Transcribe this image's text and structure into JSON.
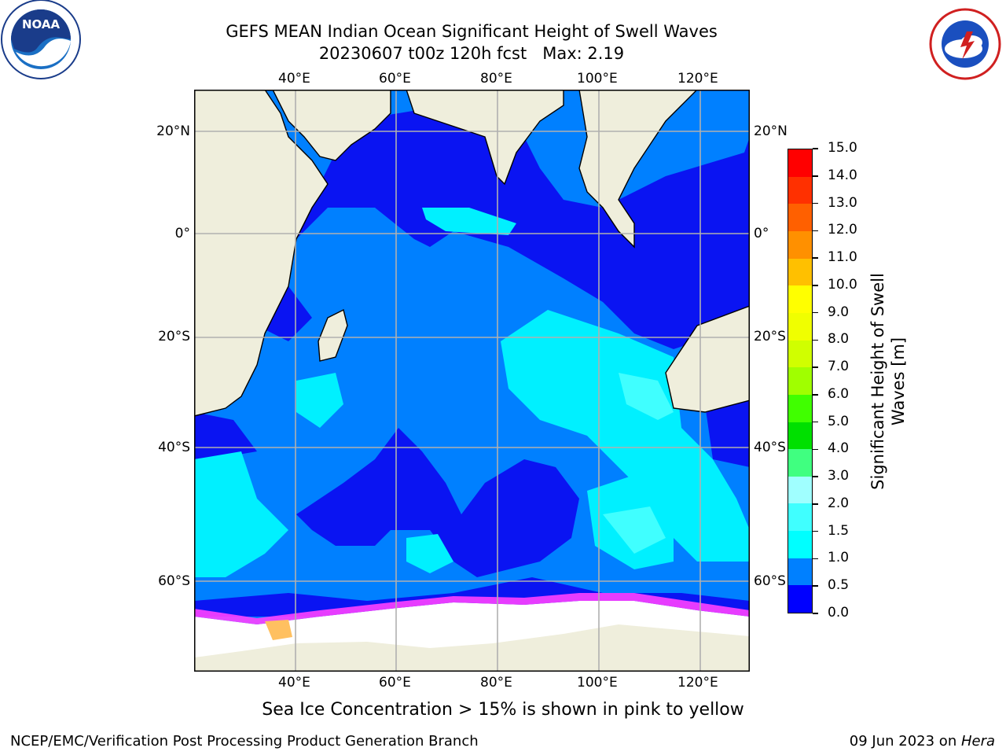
{
  "title": {
    "line1": "GEFS MEAN Indian Ocean Significant Height of Swell Waves",
    "line2": "20230607 t00z 120h fcst   Max: 2.19"
  },
  "logos": {
    "left": "NOAA",
    "left_ring": "NATIONAL OCEANIC AND ATMOSPHERIC ADMINISTRATION · U.S. DEPARTMENT OF COMMERCE",
    "right_ring": "NATIONAL WEATHER SERVICE"
  },
  "map": {
    "lon_ticks": [
      "40°E",
      "60°E",
      "80°E",
      "100°E",
      "120°E"
    ],
    "lat_ticks": [
      "20°N",
      "0°",
      "20°S",
      "40°S",
      "60°S"
    ],
    "colors": {
      "land": "#efeedc",
      "ocean_0_0.5": "#0a14f2",
      "ocean_0.5_1.0": "#0080ff",
      "ocean_1.0_1.5": "#00f0ff",
      "ocean_1.5_2.0": "#40ffff",
      "ice_low": "#ff40ff",
      "ice_high": "#ffc060",
      "ice_shelf": "#ffffff"
    }
  },
  "colorbar": {
    "label": "Significant Height of Swell Waves [m]",
    "ticks": [
      "0.0",
      "0.5",
      "1.0",
      "1.5",
      "2.0",
      "3.0",
      "4.0",
      "5.0",
      "6.0",
      "7.0",
      "8.0",
      "9.0",
      "10.0",
      "11.0",
      "12.0",
      "13.0",
      "14.0",
      "15.0"
    ],
    "colors": [
      "#0000ff",
      "#0080ff",
      "#00ffff",
      "#40ffff",
      "#a0ffff",
      "#40ff80",
      "#00e000",
      "#40ff00",
      "#a0ff00",
      "#d0ff00",
      "#f0ff00",
      "#ffff00",
      "#ffc000",
      "#ff9000",
      "#ff6000",
      "#ff3000",
      "#ff0000"
    ]
  },
  "caption": "Sea Ice Concentration > 15% is shown in pink to yellow",
  "footer": {
    "left": "NCEP/EMC/Verification Post Processing Product Generation Branch",
    "right_date": "09 Jun 2023 on ",
    "right_host": "Hera"
  }
}
